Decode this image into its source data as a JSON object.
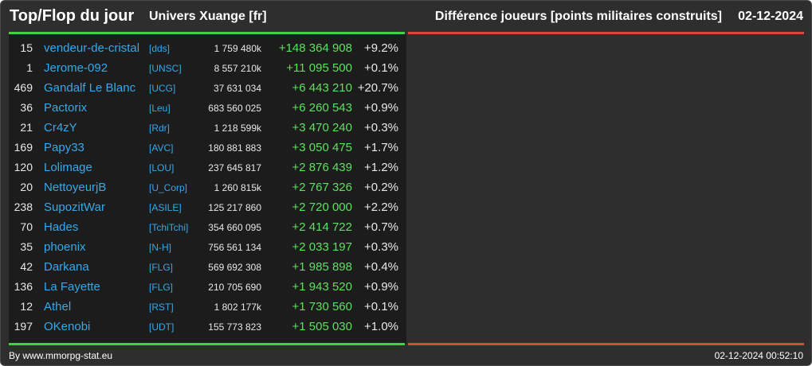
{
  "header": {
    "title": "Top/Flop du jour",
    "universe": "Univers Xuange [fr]",
    "metric": "Différence joueurs [points militaires construits]",
    "date": "02-12-2024"
  },
  "rows": [
    {
      "rank": "15",
      "name": "vendeur-de-cristal",
      "alliance": "[dds]",
      "points": "1 759 480k",
      "diff": "+148 364 908",
      "pct": "+9.2%"
    },
    {
      "rank": "1",
      "name": "Jerome-092",
      "alliance": "[UNSC]",
      "points": "8 557 210k",
      "diff": "+11 095 500",
      "pct": "+0.1%"
    },
    {
      "rank": "469",
      "name": "Gandalf Le Blanc",
      "alliance": "[UCG]",
      "points": "37 631 034",
      "diff": "+6 443 210",
      "pct": "+20.7%"
    },
    {
      "rank": "36",
      "name": "Pactorix",
      "alliance": "[Leu]",
      "points": "683 560 025",
      "diff": "+6 260 543",
      "pct": "+0.9%"
    },
    {
      "rank": "21",
      "name": "Cr4zY",
      "alliance": "[Rdr]",
      "points": "1 218 599k",
      "diff": "+3 470 240",
      "pct": "+0.3%"
    },
    {
      "rank": "169",
      "name": "Papy33",
      "alliance": "[AVC]",
      "points": "180 881 883",
      "diff": "+3 050 475",
      "pct": "+1.7%"
    },
    {
      "rank": "120",
      "name": "Lolimage",
      "alliance": "[LOU]",
      "points": "237 645 817",
      "diff": "+2 876 439",
      "pct": "+1.2%"
    },
    {
      "rank": "20",
      "name": "NettoyeurjB",
      "alliance": "[U_Corp]",
      "points": "1 260 815k",
      "diff": "+2 767 326",
      "pct": "+0.2%"
    },
    {
      "rank": "238",
      "name": "SupozitWar",
      "alliance": "[ASILE]",
      "points": "125 217 860",
      "diff": "+2 720 000",
      "pct": "+2.2%"
    },
    {
      "rank": "70",
      "name": "Hades",
      "alliance": "[TchiTchi]",
      "points": "354 660 095",
      "diff": "+2 414 722",
      "pct": "+0.7%"
    },
    {
      "rank": "35",
      "name": "phoenix",
      "alliance": "[N-H]",
      "points": "756 561 134",
      "diff": "+2 033 197",
      "pct": "+0.3%"
    },
    {
      "rank": "42",
      "name": "Darkana",
      "alliance": "[FLG]",
      "points": "569 692 308",
      "diff": "+1 985 898",
      "pct": "+0.4%"
    },
    {
      "rank": "136",
      "name": "La Fayette",
      "alliance": "[FLG]",
      "points": "210 705 690",
      "diff": "+1 943 520",
      "pct": "+0.9%"
    },
    {
      "rank": "12",
      "name": "Athel",
      "alliance": "[RST]",
      "points": "1 802 177k",
      "diff": "+1 730 560",
      "pct": "+0.1%"
    },
    {
      "rank": "197",
      "name": "OKenobi",
      "alliance": "[UDT]",
      "points": "155 773 823",
      "diff": "+1 505 030",
      "pct": "+1.0%"
    }
  ],
  "footer": {
    "credit": "By www.mmorpg-stat.eu",
    "timestamp": "02-12-2024 00:52:10"
  },
  "colors": {
    "background": "#2e2e2e",
    "panel": "#1c1c1c",
    "top_accent": "#3ed63e",
    "flop_accent": "#d64a3e",
    "link": "#38a8e8",
    "gain": "#5ee05e"
  }
}
